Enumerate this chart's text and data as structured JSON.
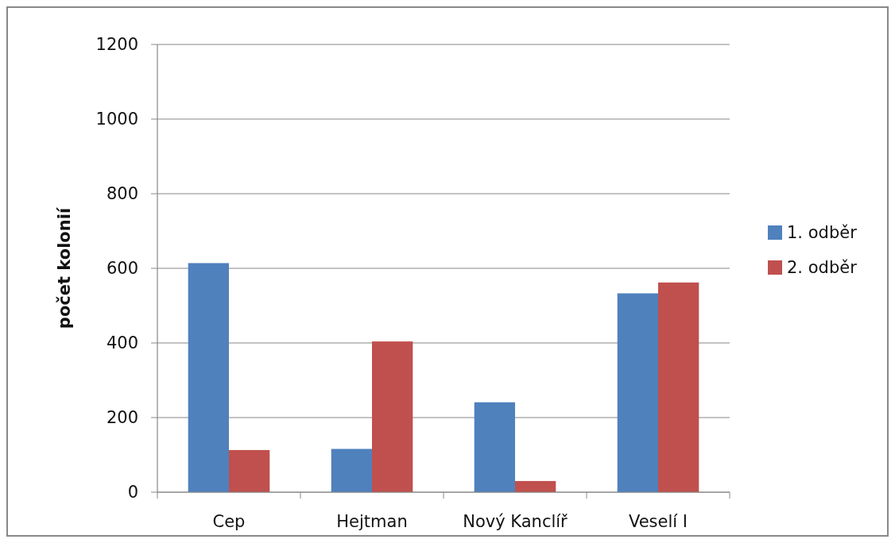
{
  "chart_data": {
    "type": "bar",
    "ylabel": "počet kolonií",
    "categories": [
      "Cep",
      "Hejtman",
      "Nový Kanclíř",
      "Veselí I"
    ],
    "series": [
      {
        "name": "1. odběr",
        "color": "#4f81bd",
        "values": [
          614,
          116,
          241,
          533
        ]
      },
      {
        "name": "2. odběr",
        "color": "#c0504d",
        "values": [
          113,
          404,
          30,
          562
        ]
      }
    ],
    "ylim": [
      0,
      1200
    ],
    "yticks": [
      0,
      200,
      400,
      600,
      800,
      1000,
      1200
    ],
    "grid": "y",
    "legend": "right"
  }
}
